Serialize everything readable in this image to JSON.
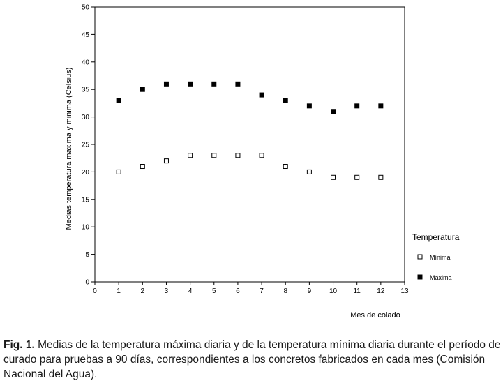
{
  "chart_data": {
    "type": "scatter",
    "title": "",
    "xlabel": "Mes de colado",
    "ylabel": "Medias temperatura maxima y minima (Celsius)",
    "xlim": [
      0,
      13
    ],
    "ylim": [
      0,
      50
    ],
    "x_ticks": [
      "0",
      "1",
      "2",
      "3",
      "4",
      "5",
      "6",
      "7",
      "8",
      "9",
      "10",
      "11",
      "12",
      "13"
    ],
    "y_ticks": [
      "0",
      "5",
      "10",
      "15",
      "20",
      "25",
      "30",
      "35",
      "40",
      "45",
      "50"
    ],
    "grid": false,
    "legend_title": "Temperatura",
    "legend_position": "right",
    "x": [
      1,
      2,
      3,
      4,
      5,
      6,
      7,
      8,
      9,
      10,
      11,
      12
    ],
    "series": [
      {
        "name": "Mínima",
        "marker": "open-square",
        "color": "#000000",
        "values": [
          20,
          21,
          22,
          23,
          23,
          23,
          23,
          21,
          20,
          19,
          19,
          19
        ]
      },
      {
        "name": "Máxima",
        "marker": "filled-square",
        "color": "#000000",
        "values": [
          33,
          35,
          36,
          36,
          36,
          36,
          34,
          33,
          32,
          31,
          32,
          32
        ]
      }
    ]
  },
  "caption": {
    "label": "Fig. 1.",
    "text": "Medias de la temperatura máxima diaria y de la temperatura mínima diaria durante el período de curado para pruebas a 90 días, correspondientes a los concretos fabricados en cada mes (Comisión Nacional del Agua)."
  }
}
